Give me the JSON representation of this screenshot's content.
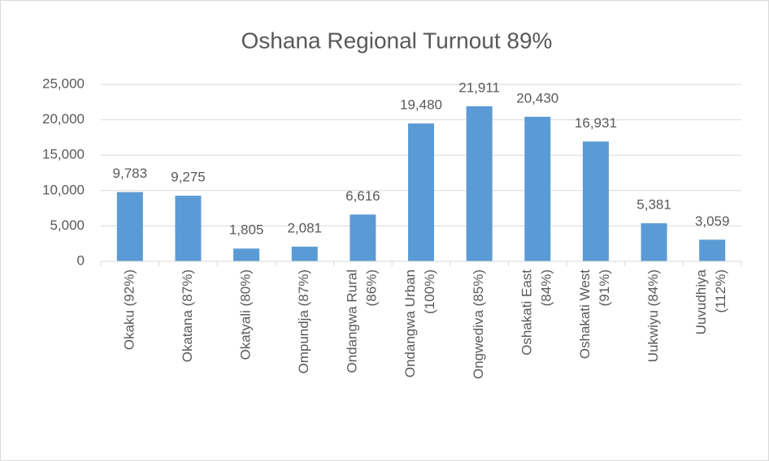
{
  "chart_data": {
    "type": "bar",
    "title": "Oshana Regional Turnout 89%",
    "categories": [
      "Okaku (92%)",
      "Okatana (87%)",
      "Okatyali (80%)",
      "Ompundja (87%)",
      "Ondangwa Rural\n(86%)",
      "Ondangwa Urban\n(100%)",
      "Ongwediva (85%)",
      "Oshakati East\n(84%)",
      "Oshakati West\n(91%)",
      "Uukwiyu (84%)",
      "Uuvudhiya\n(112%)"
    ],
    "values": [
      9783,
      9275,
      1805,
      2081,
      6616,
      19480,
      21911,
      20430,
      16931,
      5381,
      3059
    ],
    "value_labels": [
      "9,783",
      "9,275",
      "1,805",
      "2,081",
      "6,616",
      "19,480",
      "21,911",
      "20,430",
      "16,931",
      "5,381",
      "3,059"
    ],
    "color": "#5b9bd5",
    "ylim": [
      0,
      25000
    ],
    "yticks": [
      0,
      {
        "value": 5000,
        "label": "5,000"
      },
      {
        "value": 10000,
        "label": "10,000"
      },
      {
        "value": 15000,
        "label": "15,000"
      },
      {
        "value": 20000,
        "label": "20,000"
      },
      {
        "value": 25000,
        "label": "25,000"
      }
    ],
    "grid": true
  }
}
